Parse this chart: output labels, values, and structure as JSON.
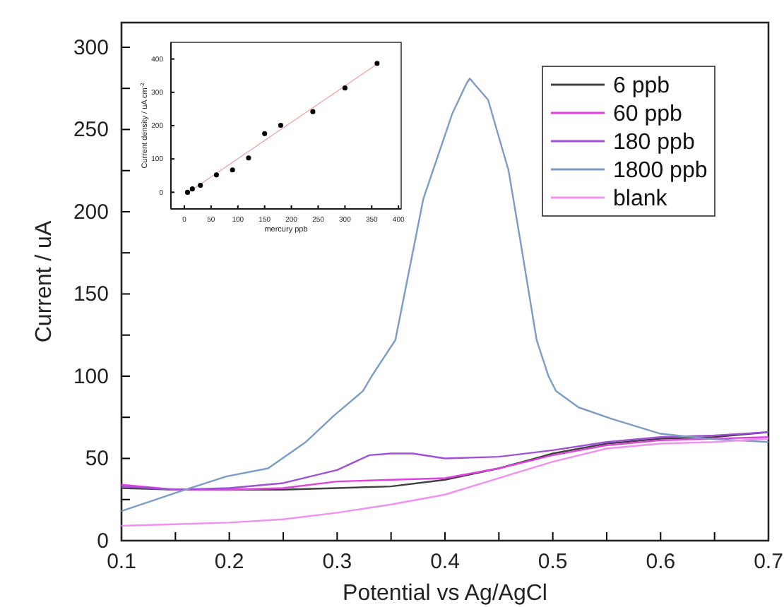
{
  "chart_data": [
    {
      "type": "line",
      "xlabel": "Potential vs Ag/AgCl",
      "ylabel": "Current  /  uA",
      "xlim": [
        0.1,
        0.7
      ],
      "ylim": [
        0,
        315
      ],
      "xticks": [
        0.1,
        {
          "value": 0.15,
          "label": null
        },
        0.2,
        {
          "value": 0.25,
          "label": null
        },
        0.3,
        {
          "value": 0.35,
          "label": null
        },
        0.4,
        {
          "value": 0.45,
          "label": null
        },
        0.5,
        {
          "value": 0.55,
          "label": null
        },
        0.6,
        {
          "value": 0.65,
          "label": null
        },
        0.7
      ],
      "yticks": [
        0,
        {
          "value": 25,
          "label": null
        },
        50,
        {
          "value": 75,
          "label": null
        },
        100,
        {
          "value": 125,
          "label": null
        },
        150,
        {
          "value": 175,
          "label": null
        },
        200,
        {
          "value": 225,
          "label": null
        },
        250,
        {
          "value": 275,
          "label": null
        },
        300
      ],
      "grid": false,
      "legend": "top right",
      "line_style": "solid",
      "series": [
        {
          "name": "6 ppb",
          "color": "#404040",
          "x": [
            0.1,
            0.15,
            0.2,
            0.25,
            0.3,
            0.35,
            0.4,
            0.45,
            0.5,
            0.55,
            0.6,
            0.65,
            0.7
          ],
          "values": [
            32,
            31,
            31,
            31,
            32,
            33,
            37,
            44,
            53,
            59,
            62,
            63,
            66
          ]
        },
        {
          "name": "60 ppb",
          "color": "#e040e0",
          "x": [
            0.1,
            0.15,
            0.2,
            0.25,
            0.3,
            0.35,
            0.4,
            0.45,
            0.5,
            0.55,
            0.6,
            0.65,
            0.7
          ],
          "values": [
            34,
            31,
            31,
            32,
            36,
            37,
            38,
            44,
            52,
            58,
            61,
            62,
            63
          ]
        },
        {
          "name": "180 ppb",
          "color": "#a050d8",
          "x": [
            0.1,
            0.15,
            0.2,
            0.25,
            0.3,
            0.33,
            0.35,
            0.37,
            0.4,
            0.45,
            0.5,
            0.55,
            0.6,
            0.65,
            0.7
          ],
          "values": [
            33,
            31,
            32,
            35,
            43,
            52,
            53,
            53,
            50,
            51,
            55,
            60,
            63,
            64,
            66
          ]
        },
        {
          "name": "1800 ppb",
          "color": "#7a9cc6",
          "x": [
            0.1,
            0.15,
            0.197,
            0.236,
            0.271,
            0.297,
            0.324,
            0.332,
            0.354,
            0.38,
            0.407,
            0.42,
            0.423,
            0.44,
            0.459,
            0.472,
            0.485,
            0.496,
            0.503,
            0.524,
            0.555,
            0.6,
            0.643,
            0.7
          ],
          "values": [
            18,
            29,
            39,
            44,
            60,
            76,
            91,
            100,
            122,
            208,
            260,
            278,
            281,
            268,
            225,
            174,
            122,
            100,
            91,
            81,
            74,
            65,
            62,
            60
          ]
        },
        {
          "name": "blank",
          "color": "#f090f0",
          "x": [
            0.1,
            0.2,
            0.25,
            0.3,
            0.35,
            0.4,
            0.45,
            0.5,
            0.55,
            0.6,
            0.65,
            0.7
          ],
          "values": [
            9,
            11,
            13,
            17,
            22,
            28,
            38,
            48,
            56,
            59,
            60,
            62
          ]
        }
      ]
    },
    {
      "type": "scatter",
      "xlabel": "mercury ppb",
      "ylabel": "Current density  /  uA cm$^{-2}$",
      "xlim": [
        -25,
        405
      ],
      "ylim": [
        -50,
        450
      ],
      "xticks": [
        0,
        50,
        100,
        150,
        200,
        250,
        300,
        350,
        400
      ],
      "yticks": [
        0,
        100,
        200,
        300,
        400
      ],
      "grid": false,
      "legend": false,
      "series": [
        {
          "type": "line",
          "color": "#f0a0a0",
          "x": [
            6,
            360
          ],
          "values": [
            -2,
            385
          ]
        },
        {
          "marker": "circle",
          "color": "#000000",
          "x": [
            6,
            15,
            30,
            60,
            90,
            120,
            150,
            180,
            240,
            300,
            360
          ],
          "values": [
            0,
            10,
            21,
            52,
            67,
            103,
            176,
            201,
            242,
            313,
            387
          ]
        }
      ]
    }
  ]
}
